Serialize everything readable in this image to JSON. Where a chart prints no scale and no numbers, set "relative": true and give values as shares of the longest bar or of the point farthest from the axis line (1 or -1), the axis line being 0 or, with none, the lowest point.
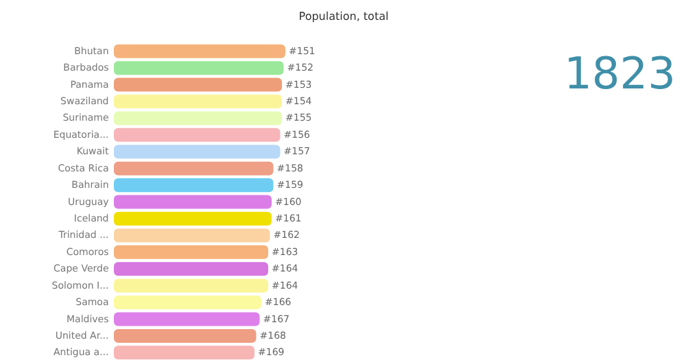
{
  "chart_data": {
    "type": "bar",
    "orientation": "horizontal",
    "relative": true,
    "title": "Population, total",
    "categories": [
      "Bhutan",
      "Barbados",
      "Panama",
      "Swaziland",
      "Suriname",
      "Equatoria...",
      "Kuwait",
      "Costa Rica",
      "Bahrain",
      "Uruguay",
      "Iceland",
      "Trinidad ...",
      "Comoros",
      "Cape Verde",
      "Solomon I...",
      "Samoa",
      "Maldives",
      "United Ar...",
      "Antigua a..."
    ],
    "values": [
      1,
      0.99,
      0.98,
      0.98,
      0.98,
      0.97,
      0.97,
      0.93,
      0.93,
      0.92,
      0.92,
      0.91,
      0.9,
      0.9,
      0.9,
      0.86,
      0.85,
      0.83,
      0.82
    ],
    "colors": [
      "#f5b27a",
      "#9be89a",
      "#ee9e78",
      "#fbf59a",
      "#e6fbb5",
      "#f7b5b9",
      "#b8d8f8",
      "#ee9f86",
      "#6fcdf4",
      "#da7de6",
      "#f0e000",
      "#fbd3a2",
      "#f6b27a",
      "#d678e0",
      "#fbf59a",
      "#fbfa9e",
      "#de80ea",
      "#ee9e83",
      "#f7b5b4"
    ],
    "annotations": [
      "1823",
      {
        "text": "#151",
        "x": 1,
        "y": "Bhutan"
      },
      {
        "text": "#152",
        "x": 0.99,
        "y": "Barbados"
      },
      {
        "text": "#153",
        "x": 0.98,
        "y": "Panama"
      },
      {
        "text": "#154",
        "x": 0.98,
        "y": "Swaziland"
      },
      {
        "text": "#155",
        "x": 0.98,
        "y": "Suriname"
      },
      {
        "text": "#156",
        "x": 0.97,
        "y": "Equatoria..."
      },
      {
        "text": "#157",
        "x": 0.97,
        "y": "Kuwait"
      },
      {
        "text": "#158",
        "x": 0.93,
        "y": "Costa Rica"
      },
      {
        "text": "#159",
        "x": 0.93,
        "y": "Bahrain"
      },
      {
        "text": "#160",
        "x": 0.92,
        "y": "Uruguay"
      },
      {
        "text": "#161",
        "x": 0.92,
        "y": "Iceland"
      },
      {
        "text": "#162",
        "x": 0.91,
        "y": "Trinidad ..."
      },
      {
        "text": "#163",
        "x": 0.9,
        "y": "Comoros"
      },
      {
        "text": "#164",
        "x": 0.9,
        "y": "Cape Verde"
      },
      {
        "text": "#164",
        "x": 0.9,
        "y": "Solomon I..."
      },
      {
        "text": "#166",
        "x": 0.86,
        "y": "Samoa"
      },
      {
        "text": "#167",
        "x": 0.85,
        "y": "Maldives"
      },
      {
        "text": "#168",
        "x": 0.83,
        "y": "United Ar..."
      },
      {
        "text": "#169",
        "x": 0.82,
        "y": "Antigua a..."
      }
    ],
    "grid": false
  }
}
